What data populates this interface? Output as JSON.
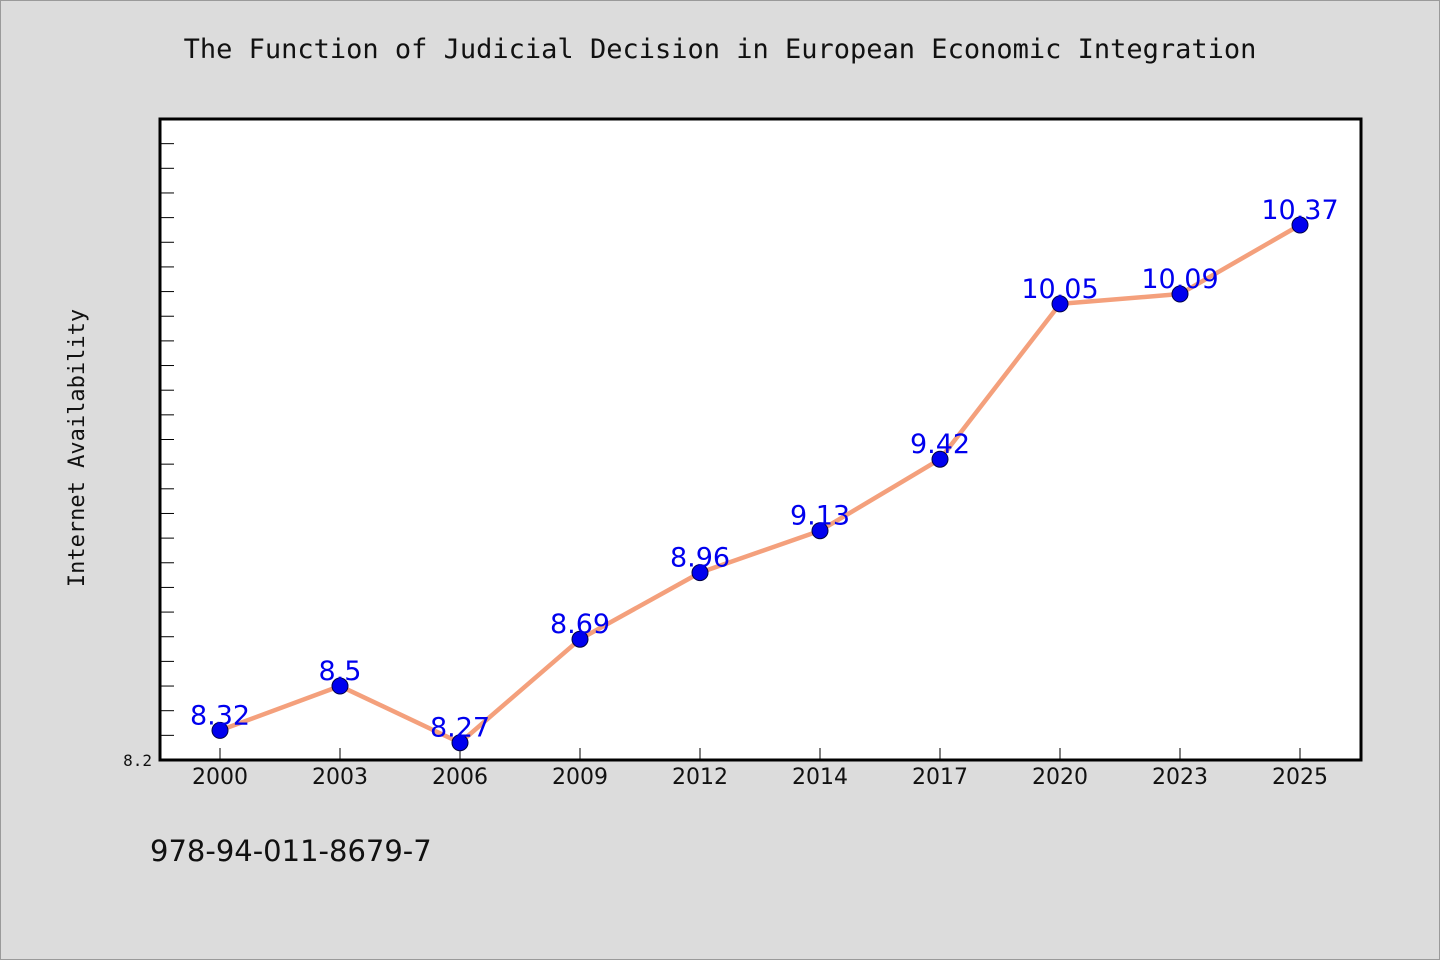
{
  "chart_data": {
    "type": "line",
    "title": "The Function of Judicial Decision in European Economic Integration",
    "xlabel": "",
    "ylabel": "Internet Availability",
    "categories": [
      "2000",
      "2003",
      "2006",
      "2009",
      "2012",
      "2014",
      "2017",
      "2020",
      "2023",
      "2025"
    ],
    "series": [
      {
        "values": [
          8.32,
          8.5,
          8.27,
          8.69,
          8.96,
          9.13,
          9.42,
          10.05,
          10.09,
          10.37
        ]
      }
    ],
    "data_labels": [
      "8.32",
      "8.5",
      "8.27",
      "8.69",
      "8.96",
      "9.13",
      "9.42",
      "10.05",
      "10.09",
      "10.37"
    ],
    "y_tick_labels": [
      "8.2"
    ],
    "ylim": [
      8.2,
      10.8
    ],
    "grid": false,
    "legend": "none",
    "colors": {
      "line": "#f4a07c",
      "marker": "#0000ee",
      "data_label": "#0000ee",
      "plot_background": "#ffffff",
      "page_background": "#dcdcdc"
    }
  },
  "footer": {
    "isbn": "978-94-011-8679-7"
  }
}
